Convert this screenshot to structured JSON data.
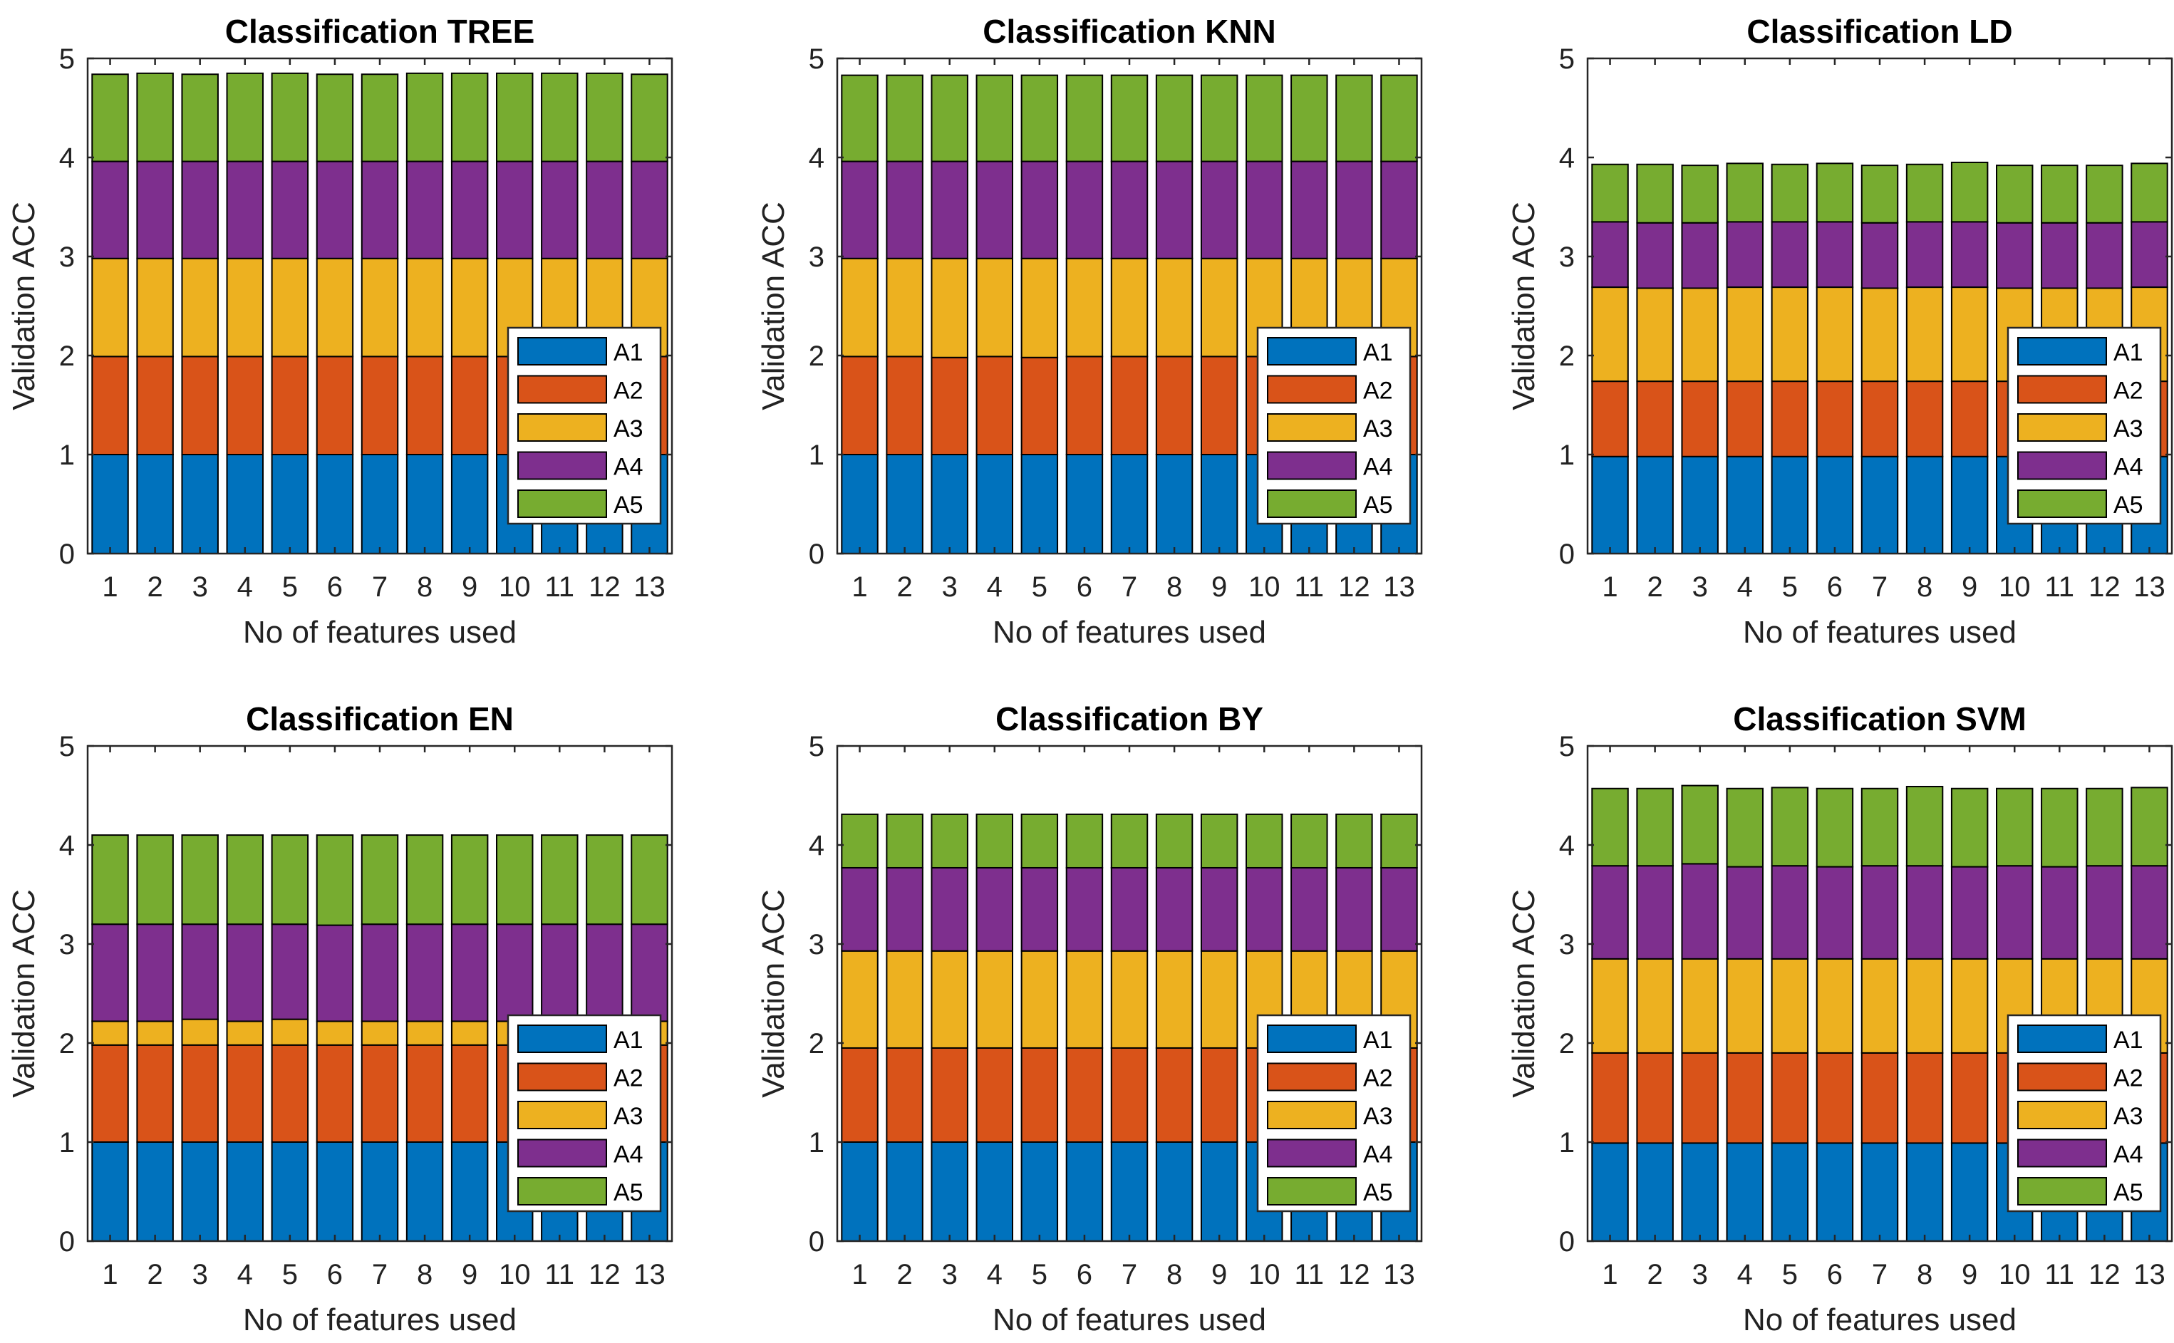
{
  "figure": {
    "shared": {
      "xlabel": "No of features used",
      "ylabel": "Validation ACC",
      "categories": [
        "1",
        "2",
        "3",
        "4",
        "5",
        "6",
        "7",
        "8",
        "9",
        "10",
        "11",
        "12",
        "13"
      ],
      "yticks": [
        "0",
        "1",
        "2",
        "3",
        "4",
        "5"
      ],
      "legend": [
        "A1",
        "A2",
        "A3",
        "A4",
        "A5"
      ],
      "colors": [
        "#0072BD",
        "#D95319",
        "#EDB120",
        "#7E2F8E",
        "#77AC30"
      ]
    }
  },
  "chart_data": [
    {
      "type": "bar",
      "stacked": true,
      "title": "Classification TREE",
      "xlabel": "No of features used",
      "ylabel": "Validation ACC",
      "ylim": [
        0,
        5
      ],
      "categories": [
        "1",
        "2",
        "3",
        "4",
        "5",
        "6",
        "7",
        "8",
        "9",
        "10",
        "11",
        "12",
        "13"
      ],
      "legend_position": "lower-right",
      "series": [
        {
          "name": "A1",
          "values": [
            1.0,
            1.0,
            1.0,
            1.0,
            1.0,
            1.0,
            1.0,
            1.0,
            1.0,
            1.0,
            1.0,
            1.0,
            1.0
          ]
        },
        {
          "name": "A2",
          "values": [
            0.99,
            0.99,
            0.99,
            0.99,
            0.99,
            0.99,
            0.99,
            0.99,
            0.99,
            0.99,
            0.99,
            0.99,
            0.99
          ]
        },
        {
          "name": "A3",
          "values": [
            0.99,
            0.99,
            0.99,
            0.99,
            0.99,
            0.99,
            0.99,
            0.99,
            0.99,
            0.99,
            0.99,
            0.99,
            0.99
          ]
        },
        {
          "name": "A4",
          "values": [
            0.98,
            0.98,
            0.98,
            0.98,
            0.98,
            0.98,
            0.98,
            0.98,
            0.98,
            0.98,
            0.98,
            0.98,
            0.98
          ]
        },
        {
          "name": "A5",
          "values": [
            0.88,
            0.89,
            0.88,
            0.89,
            0.89,
            0.88,
            0.88,
            0.89,
            0.89,
            0.89,
            0.89,
            0.89,
            0.88
          ]
        }
      ]
    },
    {
      "type": "bar",
      "stacked": true,
      "title": "Classification KNN",
      "xlabel": "No of features used",
      "ylabel": "Validation ACC",
      "ylim": [
        0,
        5
      ],
      "categories": [
        "1",
        "2",
        "3",
        "4",
        "5",
        "6",
        "7",
        "8",
        "9",
        "10",
        "11",
        "12",
        "13"
      ],
      "legend_position": "lower-right",
      "series": [
        {
          "name": "A1",
          "values": [
            1.0,
            1.0,
            1.0,
            1.0,
            1.0,
            1.0,
            1.0,
            1.0,
            1.0,
            1.0,
            1.0,
            1.0,
            1.0
          ]
        },
        {
          "name": "A2",
          "values": [
            0.99,
            0.99,
            0.98,
            0.99,
            0.98,
            0.99,
            0.99,
            0.99,
            0.99,
            0.99,
            0.99,
            0.99,
            0.99
          ]
        },
        {
          "name": "A3",
          "values": [
            0.99,
            0.99,
            1.0,
            0.99,
            1.0,
            0.99,
            0.99,
            0.99,
            0.99,
            0.99,
            0.99,
            0.99,
            0.99
          ]
        },
        {
          "name": "A4",
          "values": [
            0.98,
            0.98,
            0.98,
            0.98,
            0.98,
            0.98,
            0.98,
            0.98,
            0.98,
            0.98,
            0.98,
            0.98,
            0.98
          ]
        },
        {
          "name": "A5",
          "values": [
            0.87,
            0.87,
            0.87,
            0.87,
            0.87,
            0.87,
            0.87,
            0.87,
            0.87,
            0.87,
            0.87,
            0.87,
            0.87
          ]
        }
      ]
    },
    {
      "type": "bar",
      "stacked": true,
      "title": "Classification LD",
      "xlabel": "No of features used",
      "ylabel": "Validation ACC",
      "ylim": [
        0,
        5
      ],
      "categories": [
        "1",
        "2",
        "3",
        "4",
        "5",
        "6",
        "7",
        "8",
        "9",
        "10",
        "11",
        "12",
        "13"
      ],
      "legend_position": "lower-right",
      "series": [
        {
          "name": "A1",
          "values": [
            0.98,
            0.98,
            0.98,
            0.98,
            0.98,
            0.98,
            0.98,
            0.98,
            0.98,
            0.98,
            0.98,
            0.98,
            0.98
          ]
        },
        {
          "name": "A2",
          "values": [
            0.76,
            0.76,
            0.76,
            0.76,
            0.76,
            0.76,
            0.76,
            0.76,
            0.76,
            0.76,
            0.76,
            0.76,
            0.76
          ]
        },
        {
          "name": "A3",
          "values": [
            0.95,
            0.94,
            0.94,
            0.95,
            0.95,
            0.95,
            0.94,
            0.95,
            0.95,
            0.94,
            0.94,
            0.94,
            0.95
          ]
        },
        {
          "name": "A4",
          "values": [
            0.66,
            0.66,
            0.66,
            0.66,
            0.66,
            0.66,
            0.66,
            0.66,
            0.66,
            0.66,
            0.66,
            0.66,
            0.66
          ]
        },
        {
          "name": "A5",
          "values": [
            0.58,
            0.59,
            0.58,
            0.59,
            0.58,
            0.59,
            0.58,
            0.58,
            0.6,
            0.58,
            0.58,
            0.58,
            0.59
          ]
        }
      ]
    },
    {
      "type": "bar",
      "stacked": true,
      "title": "Classification EN",
      "xlabel": "No of features used",
      "ylabel": "Validation ACC",
      "ylim": [
        0,
        5
      ],
      "categories": [
        "1",
        "2",
        "3",
        "4",
        "5",
        "6",
        "7",
        "8",
        "9",
        "10",
        "11",
        "12",
        "13"
      ],
      "legend_position": "lower-right",
      "series": [
        {
          "name": "A1",
          "values": [
            1.0,
            1.0,
            1.0,
            1.0,
            1.0,
            1.0,
            1.0,
            1.0,
            1.0,
            1.0,
            1.0,
            1.0,
            1.0
          ]
        },
        {
          "name": "A2",
          "values": [
            0.98,
            0.98,
            0.98,
            0.98,
            0.98,
            0.98,
            0.98,
            0.98,
            0.98,
            0.98,
            0.98,
            0.98,
            0.98
          ]
        },
        {
          "name": "A3",
          "values": [
            0.24,
            0.24,
            0.26,
            0.24,
            0.26,
            0.24,
            0.24,
            0.24,
            0.24,
            0.24,
            0.24,
            0.24,
            0.24
          ]
        },
        {
          "name": "A4",
          "values": [
            0.98,
            0.98,
            0.96,
            0.98,
            0.96,
            0.97,
            0.98,
            0.98,
            0.98,
            0.98,
            0.98,
            0.98,
            0.98
          ]
        },
        {
          "name": "A5",
          "values": [
            0.9,
            0.9,
            0.9,
            0.9,
            0.9,
            0.91,
            0.9,
            0.9,
            0.9,
            0.9,
            0.9,
            0.9,
            0.9
          ]
        }
      ]
    },
    {
      "type": "bar",
      "stacked": true,
      "title": "Classification BY",
      "xlabel": "No of features used",
      "ylabel": "Validation ACC",
      "ylim": [
        0,
        5
      ],
      "categories": [
        "1",
        "2",
        "3",
        "4",
        "5",
        "6",
        "7",
        "8",
        "9",
        "10",
        "11",
        "12",
        "13"
      ],
      "legend_position": "lower-right",
      "series": [
        {
          "name": "A1",
          "values": [
            1.0,
            1.0,
            1.0,
            1.0,
            1.0,
            1.0,
            1.0,
            1.0,
            1.0,
            1.0,
            1.0,
            1.0,
            1.0
          ]
        },
        {
          "name": "A2",
          "values": [
            0.95,
            0.95,
            0.95,
            0.95,
            0.95,
            0.95,
            0.95,
            0.95,
            0.95,
            0.95,
            0.95,
            0.95,
            0.95
          ]
        },
        {
          "name": "A3",
          "values": [
            0.98,
            0.98,
            0.98,
            0.98,
            0.98,
            0.98,
            0.98,
            0.98,
            0.98,
            0.98,
            0.98,
            0.98,
            0.98
          ]
        },
        {
          "name": "A4",
          "values": [
            0.84,
            0.84,
            0.84,
            0.84,
            0.84,
            0.84,
            0.84,
            0.84,
            0.84,
            0.84,
            0.84,
            0.84,
            0.84
          ]
        },
        {
          "name": "A5",
          "values": [
            0.54,
            0.54,
            0.54,
            0.54,
            0.54,
            0.54,
            0.54,
            0.54,
            0.54,
            0.54,
            0.54,
            0.54,
            0.54
          ]
        }
      ]
    },
    {
      "type": "bar",
      "stacked": true,
      "title": "Classification SVM",
      "xlabel": "No of features used",
      "ylabel": "Validation ACC",
      "ylim": [
        0,
        5
      ],
      "categories": [
        "1",
        "2",
        "3",
        "4",
        "5",
        "6",
        "7",
        "8",
        "9",
        "10",
        "11",
        "12",
        "13"
      ],
      "legend_position": "lower-right",
      "series": [
        {
          "name": "A1",
          "values": [
            0.99,
            0.99,
            0.99,
            0.99,
            0.99,
            0.99,
            0.99,
            0.99,
            0.99,
            0.99,
            0.99,
            0.99,
            0.99
          ]
        },
        {
          "name": "A2",
          "values": [
            0.91,
            0.91,
            0.91,
            0.91,
            0.91,
            0.91,
            0.91,
            0.91,
            0.91,
            0.91,
            0.91,
            0.91,
            0.91
          ]
        },
        {
          "name": "A3",
          "values": [
            0.95,
            0.95,
            0.95,
            0.95,
            0.95,
            0.95,
            0.95,
            0.95,
            0.95,
            0.95,
            0.95,
            0.95,
            0.95
          ]
        },
        {
          "name": "A4",
          "values": [
            0.94,
            0.94,
            0.96,
            0.93,
            0.94,
            0.93,
            0.94,
            0.94,
            0.93,
            0.94,
            0.93,
            0.94,
            0.94
          ]
        },
        {
          "name": "A5",
          "values": [
            0.78,
            0.78,
            0.79,
            0.79,
            0.79,
            0.79,
            0.78,
            0.8,
            0.79,
            0.78,
            0.79,
            0.78,
            0.79
          ]
        }
      ]
    }
  ]
}
